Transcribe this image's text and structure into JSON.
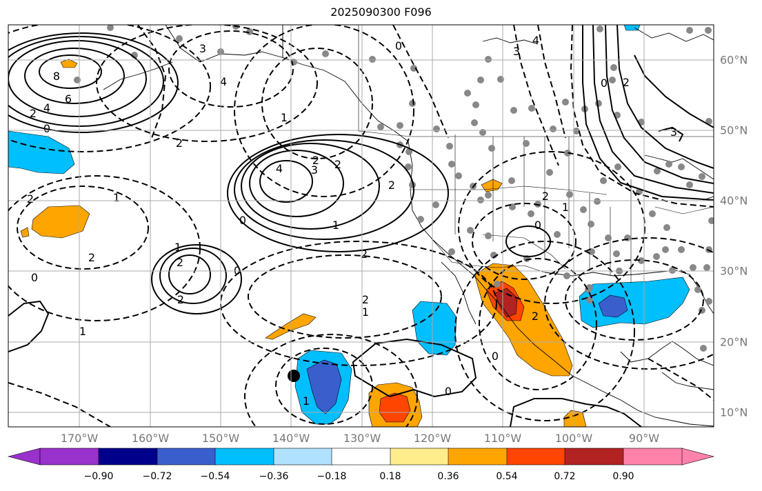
{
  "title": "2025090300 F096",
  "longitude_labels": [
    "170°W",
    "160°W",
    "150°W",
    "140°W",
    "130°W",
    "120°W",
    "110°W",
    "100°W",
    "90°W"
  ],
  "latitude_labels": [
    "60°N",
    "50°N",
    "40°N",
    "30°N",
    "20°N",
    "10°N"
  ],
  "colorbar": {
    "tick_labels": [
      "−0.90",
      "−0.72",
      "−0.54",
      "−0.36",
      "−0.18",
      "0.18",
      "0.36",
      "0.54",
      "0.72",
      "0.90"
    ],
    "colors": [
      "#9932cc",
      "#00008b",
      "#3a5fcd",
      "#00bfff",
      "#b0e2ff",
      "#ffffff",
      "#ffec8b",
      "#ffa500",
      "#ff4500",
      "#b22222",
      "#ff82ab"
    ]
  },
  "contour_labels": [
    "8",
    "6",
    "4",
    "2",
    "0",
    "4",
    "3",
    "2",
    "2",
    "1",
    "0",
    "2",
    "2",
    "2",
    "0",
    "1",
    "0",
    "1",
    "1",
    "2",
    "2",
    "3",
    "4",
    "3",
    "0",
    "2",
    "4",
    "3",
    "2",
    "0",
    "0",
    "2",
    "0",
    "0",
    "2",
    "1",
    "2",
    "1",
    "1",
    "2",
    "1"
  ],
  "station_marker": "black dot"
}
